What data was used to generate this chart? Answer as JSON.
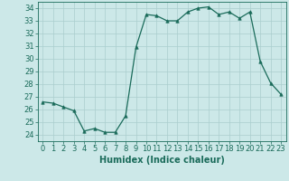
{
  "x": [
    0,
    1,
    2,
    3,
    4,
    5,
    6,
    7,
    8,
    9,
    10,
    11,
    12,
    13,
    14,
    15,
    16,
    17,
    18,
    19,
    20,
    21,
    22,
    23
  ],
  "y": [
    26.6,
    26.5,
    26.2,
    25.9,
    24.3,
    24.5,
    24.2,
    24.2,
    25.5,
    30.9,
    33.5,
    33.4,
    33.0,
    33.0,
    33.7,
    34.0,
    34.1,
    33.5,
    33.7,
    33.2,
    33.7,
    29.8,
    28.1,
    27.2
  ],
  "line_color": "#1a6b5a",
  "marker": "^",
  "marker_size": 2.5,
  "bg_color": "#cce8e8",
  "grid_color": "#aacece",
  "xlabel": "Humidex (Indice chaleur)",
  "xlim": [
    -0.5,
    23.5
  ],
  "ylim": [
    23.5,
    34.5
  ],
  "yticks": [
    24,
    25,
    26,
    27,
    28,
    29,
    30,
    31,
    32,
    33,
    34
  ],
  "xticks": [
    0,
    1,
    2,
    3,
    4,
    5,
    6,
    7,
    8,
    9,
    10,
    11,
    12,
    13,
    14,
    15,
    16,
    17,
    18,
    19,
    20,
    21,
    22,
    23
  ],
  "xlabel_fontsize": 7,
  "tick_fontsize": 6
}
